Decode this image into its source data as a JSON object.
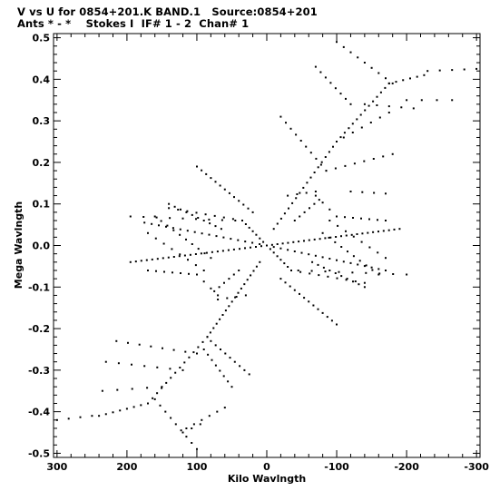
{
  "header": {
    "line1": "V vs U for 0854+201.K BAND.1   Source:0854+201",
    "line2": "Ants * - *    Stokes I  IF# 1 - 2  Chan# 1"
  },
  "chart_data": {
    "type": "scatter",
    "title": "V vs U for 0854+201.K BAND.1   Source:0854+201",
    "subtitle": "Ants * - *    Stokes I  IF# 1 - 2  Chan# 1",
    "xlabel": "Kilo Wavlngth",
    "ylabel": "Mega Wavlngth",
    "x_reversed": true,
    "xlim": [
      305,
      -305
    ],
    "ylim": [
      -0.51,
      0.51
    ],
    "x_ticks": [
      300,
      200,
      100,
      0,
      -100,
      -200,
      -300
    ],
    "x_tick_labels": [
      "300",
      "200",
      "100",
      "0",
      "-100",
      "-200",
      "-300"
    ],
    "y_ticks": [
      0.5,
      0.4,
      0.3,
      0.2,
      0.1,
      0.0,
      -0.1,
      -0.2,
      -0.3,
      -0.4,
      -0.5
    ],
    "y_tick_labels": [
      "0.5",
      "0.4",
      "0.3",
      "0.2",
      "0.1",
      "0.0",
      "-0.1",
      "-0.2",
      "-0.3",
      "-0.4",
      "-0.5"
    ],
    "grid": false,
    "marker_color": "#000000",
    "tracks": [
      {
        "from": [
          -10,
          0.04
        ],
        "to": [
          -100,
          0.25
        ],
        "n": 18
      },
      {
        "from": [
          -100,
          0.25
        ],
        "to": [
          -175,
          0.39
        ],
        "n": 14
      },
      {
        "from": [
          -175,
          0.39
        ],
        "to": [
          -225,
          0.41
        ],
        "n": 6
      },
      {
        "from": [
          -230,
          0.42
        ],
        "to": [
          -300,
          0.425
        ],
        "n": 5
      },
      {
        "from": [
          -100,
          0.49
        ],
        "to": [
          -180,
          0.39
        ],
        "n": 9
      },
      {
        "from": [
          -70,
          0.43
        ],
        "to": [
          -120,
          0.34
        ],
        "n": 8
      },
      {
        "from": [
          -20,
          0.31
        ],
        "to": [
          -85,
          0.18
        ],
        "n": 10
      },
      {
        "from": [
          -85,
          0.18
        ],
        "to": [
          -180,
          0.22
        ],
        "n": 8
      },
      {
        "from": [
          -110,
          0.26
        ],
        "to": [
          -175,
          0.32
        ],
        "n": 6
      },
      {
        "from": [
          -140,
          0.34
        ],
        "to": [
          -210,
          0.33
        ],
        "n": 5
      },
      {
        "from": [
          -200,
          0.35
        ],
        "to": [
          -265,
          0.35
        ],
        "n": 4
      },
      {
        "from": [
          10,
          -0.04
        ],
        "to": [
          85,
          -0.22
        ],
        "n": 18
      },
      {
        "from": [
          85,
          -0.22
        ],
        "to": [
          170,
          -0.38
        ],
        "n": 14
      },
      {
        "from": [
          170,
          -0.38
        ],
        "to": [
          240,
          -0.41
        ],
        "n": 8
      },
      {
        "from": [
          250,
          -0.41
        ],
        "to": [
          300,
          -0.42
        ],
        "n": 4
      },
      {
        "from": [
          160,
          -0.37
        ],
        "to": [
          100,
          -0.49
        ],
        "n": 9
      },
      {
        "from": [
          90,
          -0.25
        ],
        "to": [
          50,
          -0.34
        ],
        "n": 8
      },
      {
        "from": [
          80,
          -0.23
        ],
        "to": [
          25,
          -0.31
        ],
        "n": 9
      },
      {
        "from": [
          100,
          -0.26
        ],
        "to": [
          215,
          -0.23
        ],
        "n": 8
      },
      {
        "from": [
          120,
          -0.3
        ],
        "to": [
          230,
          -0.28
        ],
        "n": 7
      },
      {
        "from": [
          150,
          -0.34
        ],
        "to": [
          235,
          -0.35
        ],
        "n": 5
      },
      {
        "from": [
          60,
          -0.39
        ],
        "to": [
          115,
          -0.44
        ],
        "n": 6
      },
      {
        "from": [
          120,
          -0.45
        ],
        "to": [
          95,
          -0.43
        ],
        "n": 3
      },
      {
        "from": [
          0,
          0
        ],
        "to": [
          195,
          -0.04
        ],
        "n": 26
      },
      {
        "from": [
          0,
          0
        ],
        "to": [
          -190,
          0.04
        ],
        "n": 26
      },
      {
        "from": [
          0,
          0
        ],
        "to": [
          175,
          0.055
        ],
        "n": 18
      },
      {
        "from": [
          0,
          0
        ],
        "to": [
          -170,
          -0.06
        ],
        "n": 18
      },
      {
        "from": [
          0,
          0
        ],
        "to": [
          -35,
          -0.06
        ],
        "n": 8
      },
      {
        "from": [
          0,
          0
        ],
        "to": [
          35,
          0.06
        ],
        "n": 8
      },
      {
        "from": [
          35,
          0.06
        ],
        "to": [
          140,
          0.09
        ],
        "n": 9
      },
      {
        "from": [
          -35,
          -0.06
        ],
        "to": [
          -140,
          -0.09
        ],
        "n": 9
      },
      {
        "from": [
          45,
          0.06
        ],
        "to": [
          195,
          0.07
        ],
        "n": 9
      },
      {
        "from": [
          -45,
          -0.06
        ],
        "to": [
          -200,
          -0.07
        ],
        "n": 9
      },
      {
        "from": [
          100,
          0.19
        ],
        "to": [
          20,
          0.08
        ],
        "n": 13
      },
      {
        "from": [
          -100,
          -0.19
        ],
        "to": [
          -20,
          -0.08
        ],
        "n": 13
      },
      {
        "from": [
          140,
          0.1
        ],
        "to": [
          65,
          0.04
        ],
        "n": 10
      },
      {
        "from": [
          -140,
          -0.1
        ],
        "to": [
          -65,
          -0.04
        ],
        "n": 10
      },
      {
        "from": [
          160,
          0.07
        ],
        "to": [
          80,
          -0.03
        ],
        "n": 10
      },
      {
        "from": [
          -160,
          -0.07
        ],
        "to": [
          -80,
          0.03
        ],
        "n": 10
      },
      {
        "from": [
          170,
          0.03
        ],
        "to": [
          90,
          -0.06
        ],
        "n": 8
      },
      {
        "from": [
          -170,
          -0.03
        ],
        "to": [
          -90,
          0.06
        ],
        "n": 8
      },
      {
        "from": [
          170,
          -0.06
        ],
        "to": [
          100,
          -0.07
        ],
        "n": 7
      },
      {
        "from": [
          -170,
          0.06
        ],
        "to": [
          -100,
          0.07
        ],
        "n": 7
      },
      {
        "from": [
          100,
          -0.07
        ],
        "to": [
          70,
          -0.12
        ],
        "n": 4
      },
      {
        "from": [
          -100,
          0.07
        ],
        "to": [
          -70,
          0.12
        ],
        "n": 4
      },
      {
        "from": [
          40,
          -0.06
        ],
        "to": [
          75,
          -0.11
        ],
        "n": 6
      },
      {
        "from": [
          -40,
          0.06
        ],
        "to": [
          -75,
          0.11
        ],
        "n": 6
      },
      {
        "from": [
          -30,
          0.12
        ],
        "to": [
          -70,
          0.13
        ],
        "n": 4
      },
      {
        "from": [
          30,
          -0.12
        ],
        "to": [
          70,
          -0.13
        ],
        "n": 4
      },
      {
        "from": [
          -120,
          0.13
        ],
        "to": [
          -170,
          0.125
        ],
        "n": 4
      }
    ]
  }
}
